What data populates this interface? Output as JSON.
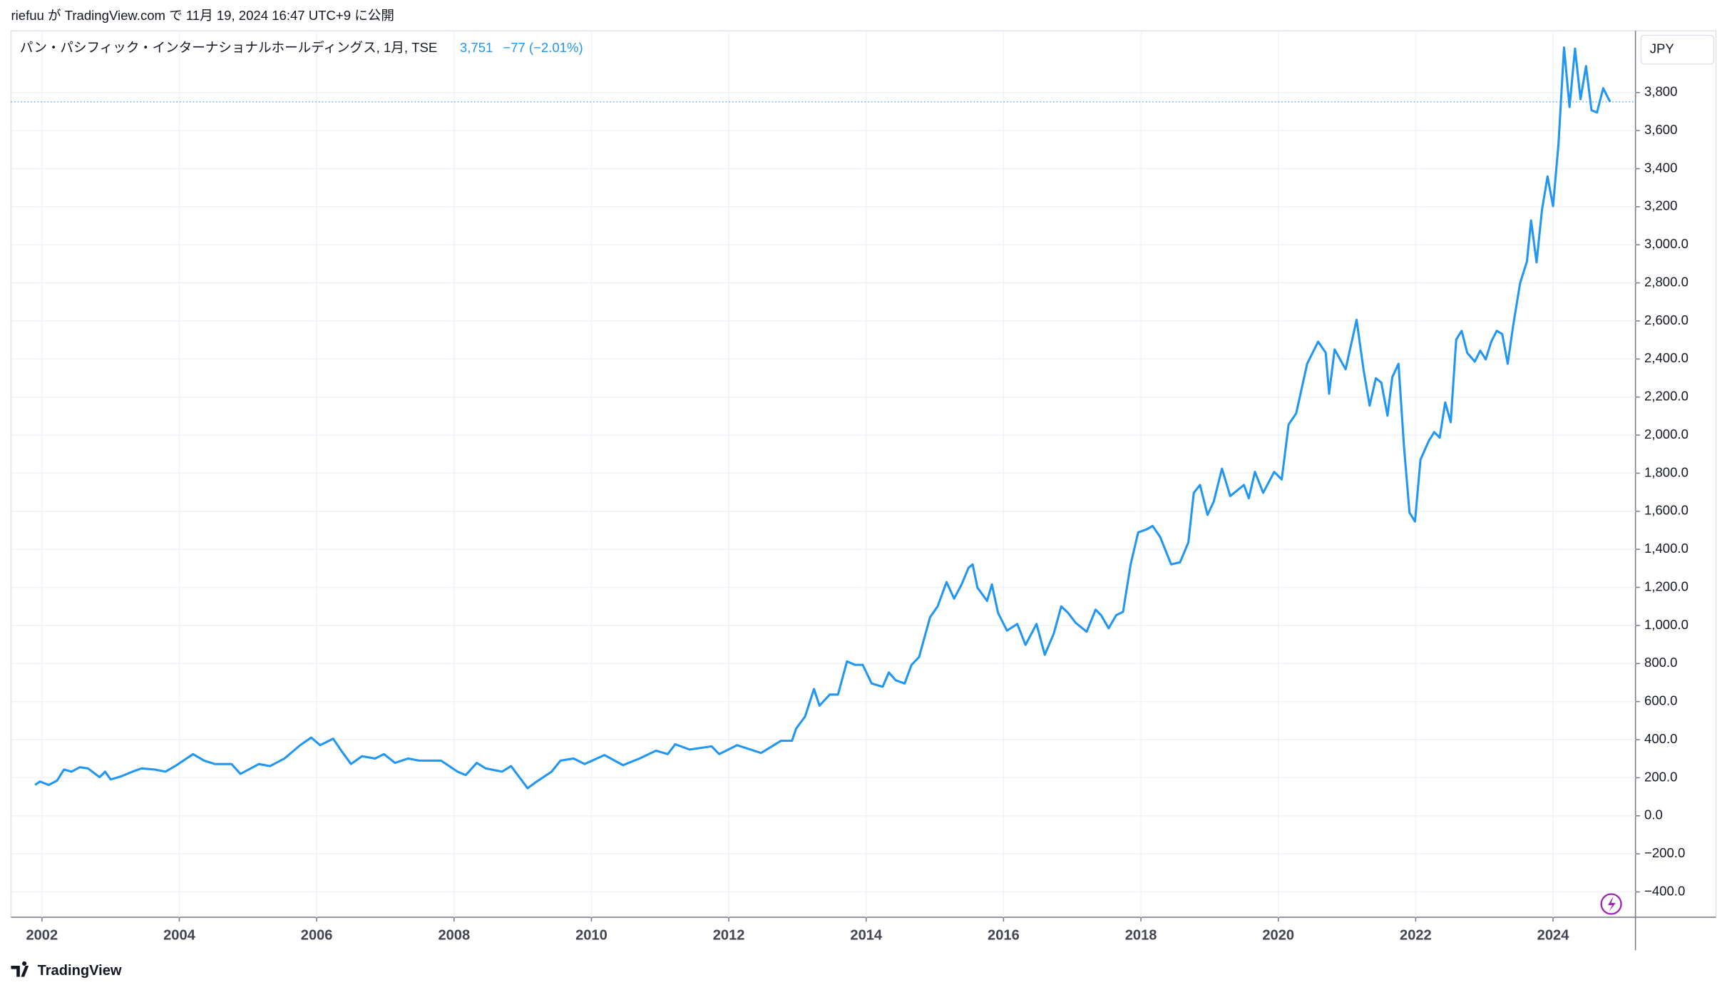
{
  "header": {
    "title": "riefuu が TradingView.com で 11月 19, 2024 16:47 UTC+9 に公開"
  },
  "footer": {
    "brand": "TradingView"
  },
  "chart_data": {
    "type": "line",
    "currency": "JPY",
    "last_price": {
      "value": 3751,
      "label": "3,751"
    },
    "change": "−77 (−2.01%)",
    "xlim": [
      2001.55,
      2025.2
    ],
    "ylim": [
      -533,
      4124
    ],
    "xticks": [
      2002,
      2004,
      2006,
      2008,
      2010,
      2012,
      2014,
      2016,
      2018,
      2020,
      2022,
      2024
    ],
    "yticks": [
      {
        "value": -400,
        "label": "−400.0"
      },
      {
        "value": -200,
        "label": "−200.0"
      },
      {
        "value": 0,
        "label": "0.0"
      },
      {
        "value": 200,
        "label": "200.0"
      },
      {
        "value": 400,
        "label": "400.0"
      },
      {
        "value": 600,
        "label": "600.0"
      },
      {
        "value": 800,
        "label": "800.0"
      },
      {
        "value": 1000,
        "label": "1,000.0"
      },
      {
        "value": 1200,
        "label": "1,200.0"
      },
      {
        "value": 1400,
        "label": "1,400.0"
      },
      {
        "value": 1600,
        "label": "1,600.0"
      },
      {
        "value": 1800,
        "label": "1,800.0"
      },
      {
        "value": 2000,
        "label": "2,000.0"
      },
      {
        "value": 2200,
        "label": "2,200.0"
      },
      {
        "value": 2400,
        "label": "2,400.0"
      },
      {
        "value": 2600,
        "label": "2,600.0"
      },
      {
        "value": 2800,
        "label": "2,800.0"
      },
      {
        "value": 3000,
        "label": "3,000.0"
      },
      {
        "value": 3200,
        "label": "3,200"
      },
      {
        "value": 3400,
        "label": "3,400"
      },
      {
        "value": 3600,
        "label": "3,600"
      },
      {
        "value": 3800,
        "label": "3,800"
      }
    ],
    "grid": true,
    "x": [
      2001.9,
      2001.97,
      2002.1,
      2002.22,
      2002.32,
      2002.43,
      2002.55,
      2002.67,
      2002.84,
      2002.92,
      2003.0,
      2003.16,
      2003.32,
      2003.45,
      2003.64,
      2003.8,
      2003.96,
      2004.2,
      2004.36,
      2004.52,
      2004.76,
      2004.89,
      2005.16,
      2005.32,
      2005.53,
      2005.76,
      2005.92,
      2006.05,
      2006.24,
      2006.37,
      2006.5,
      2006.66,
      2006.85,
      2006.98,
      2007.14,
      2007.33,
      2007.49,
      2007.81,
      2008.05,
      2008.17,
      2008.33,
      2008.46,
      2008.7,
      2008.83,
      2009.07,
      2009.18,
      2009.42,
      2009.55,
      2009.74,
      2009.9,
      2010.19,
      2010.46,
      2010.7,
      2010.94,
      2011.11,
      2011.22,
      2011.43,
      2011.75,
      2011.86,
      2012.12,
      2012.47,
      2012.76,
      2012.92,
      2012.98,
      2013.11,
      2013.24,
      2013.32,
      2013.47,
      2013.59,
      2013.72,
      2013.84,
      2013.95,
      2014.08,
      2014.24,
      2014.33,
      2014.43,
      2014.56,
      2014.66,
      2014.77,
      2014.93,
      2015.04,
      2015.17,
      2015.28,
      2015.39,
      2015.49,
      2015.55,
      2015.62,
      2015.76,
      2015.83,
      2015.92,
      2016.05,
      2016.2,
      2016.32,
      2016.48,
      2016.6,
      2016.73,
      2016.84,
      2016.94,
      2017.05,
      2017.21,
      2017.34,
      2017.42,
      2017.53,
      2017.64,
      2017.74,
      2017.85,
      2017.96,
      2018.09,
      2018.17,
      2018.28,
      2018.44,
      2018.57,
      2018.69,
      2018.77,
      2018.86,
      2018.97,
      2019.06,
      2019.18,
      2019.3,
      2019.5,
      2019.57,
      2019.66,
      2019.78,
      2019.94,
      2020.05,
      2020.15,
      2020.26,
      2020.42,
      2020.58,
      2020.69,
      2020.74,
      2020.82,
      2020.98,
      2021.14,
      2021.24,
      2021.33,
      2021.42,
      2021.5,
      2021.59,
      2021.66,
      2021.75,
      2021.83,
      2021.91,
      2021.99,
      2022.07,
      2022.19,
      2022.27,
      2022.35,
      2022.43,
      2022.51,
      2022.59,
      2022.67,
      2022.75,
      2022.86,
      2022.94,
      2023.02,
      2023.1,
      2023.18,
      2023.26,
      2023.34,
      2023.42,
      2023.52,
      2023.62,
      2023.68,
      2023.76,
      2023.84,
      2023.92,
      2024.0,
      2024.08,
      2024.16,
      2024.24,
      2024.32,
      2024.4,
      2024.48,
      2024.56,
      2024.64,
      2024.73,
      2024.83
    ],
    "series": [
      {
        "name": "パン・パシフィック・インターナショナルホールディングス, 1月, TSE",
        "color": "#2196f3",
        "values": [
          162,
          180,
          162,
          185,
          243,
          232,
          255,
          249,
          203,
          232,
          191,
          208,
          232,
          249,
          243,
          232,
          266,
          324,
          290,
          272,
          272,
          220,
          272,
          261,
          301,
          371,
          411,
          371,
          405,
          336,
          272,
          313,
          301,
          324,
          278,
          301,
          290,
          290,
          232,
          214,
          278,
          249,
          232,
          261,
          145,
          174,
          232,
          290,
          301,
          272,
          319,
          266,
          301,
          342,
          324,
          376,
          348,
          365,
          324,
          371,
          330,
          394,
          394,
          458,
          521,
          666,
          579,
          637,
          637,
          811,
          793,
          793,
          695,
          678,
          753,
          712,
          695,
          793,
          834,
          1043,
          1100,
          1228,
          1141,
          1216,
          1303,
          1321,
          1199,
          1129,
          1216,
          1066,
          973,
          1008,
          898,
          1008,
          846,
          956,
          1100,
          1066,
          1014,
          967,
          1083,
          1054,
          985,
          1054,
          1072,
          1321,
          1489,
          1506,
          1523,
          1465,
          1321,
          1332,
          1436,
          1697,
          1738,
          1581,
          1651,
          1824,
          1680,
          1738,
          1668,
          1807,
          1697,
          1807,
          1767,
          2056,
          2114,
          2375,
          2491,
          2433,
          2218,
          2450,
          2346,
          2606,
          2346,
          2155,
          2299,
          2276,
          2102,
          2305,
          2375,
          1940,
          1593,
          1546,
          1871,
          1969,
          2016,
          1987,
          2172,
          2068,
          2502,
          2548,
          2433,
          2386,
          2444,
          2398,
          2491,
          2548,
          2531,
          2375,
          2577,
          2798,
          2913,
          3128,
          2908,
          3186,
          3359,
          3203,
          3533,
          4037,
          3724,
          4031,
          3765,
          3939,
          3707,
          3695,
          3823,
          3751
        ]
      }
    ]
  }
}
